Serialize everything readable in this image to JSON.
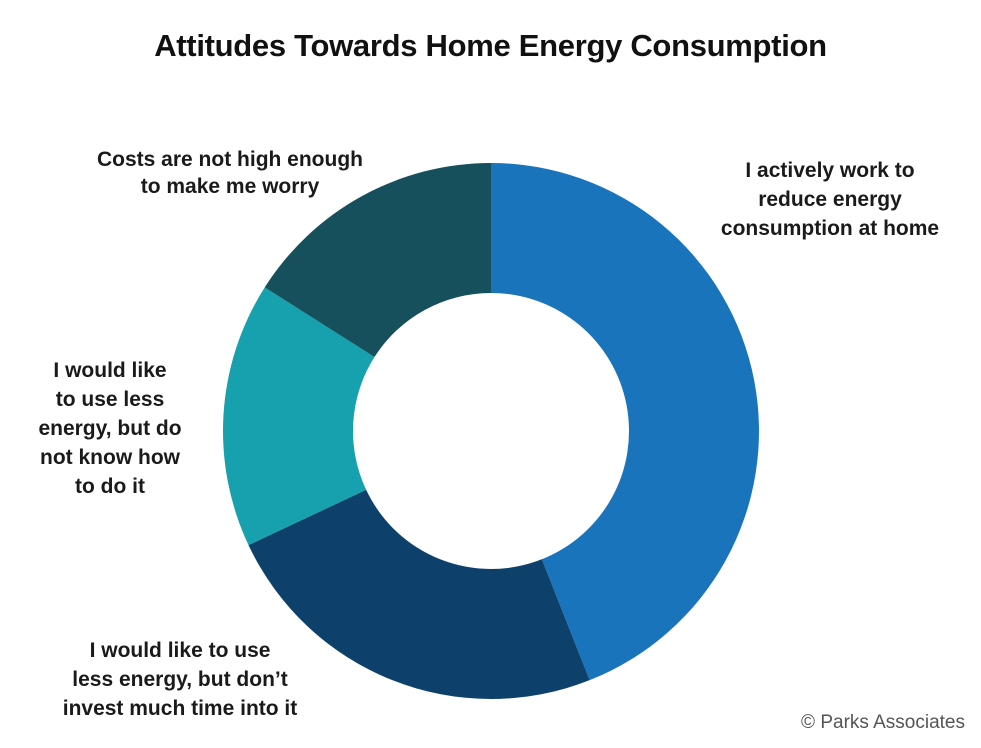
{
  "chart_data": {
    "type": "pie",
    "variant": "donut",
    "title": "Attitudes Towards Home Energy Consumption",
    "categories": [
      "I actively work to reduce energy consumption at home",
      "I would like to use less energy, but don’t invest much time into it",
      "I would like to use less energy, but do not know how to do it",
      "Costs are not high enough to make me worry"
    ],
    "values": [
      44,
      24,
      16,
      16
    ],
    "colors": [
      "#1a74bb",
      "#0d416b",
      "#17a0ad",
      "#16505c"
    ],
    "labels": [
      [
        "I actively work to",
        "reduce energy",
        "consumption at home"
      ],
      [
        "I would like to use",
        "less energy, but don’t",
        "invest much time into it"
      ],
      [
        "I would like",
        "to use less",
        "energy, but do",
        "not know how",
        "to do it"
      ],
      [
        "Costs are not high enough",
        "to make me worry"
      ]
    ],
    "legend": "none"
  },
  "footer": {
    "copyright": "© Parks Associates"
  }
}
